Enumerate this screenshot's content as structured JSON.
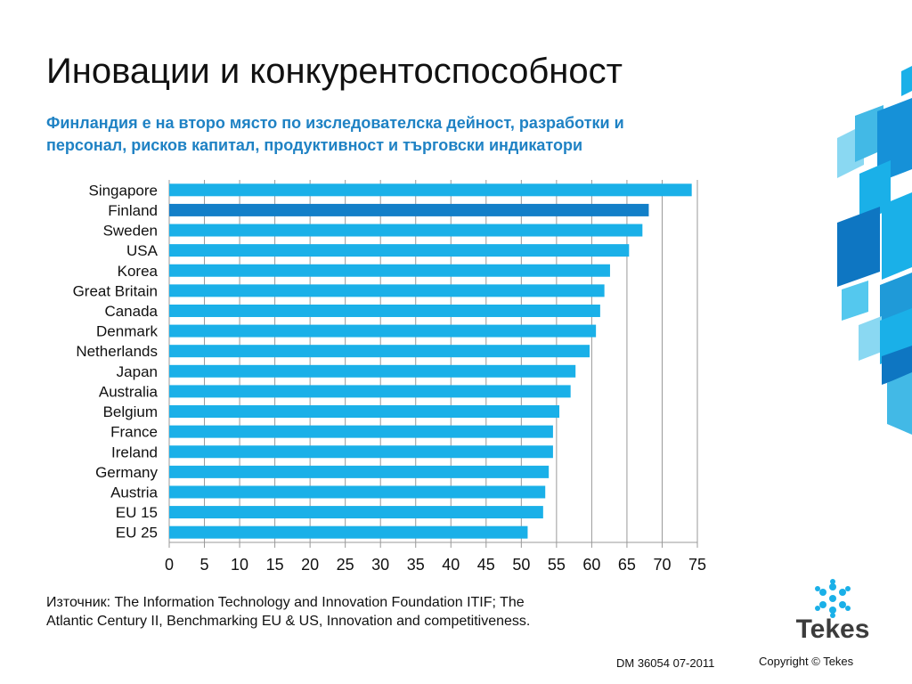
{
  "header": {
    "title": "Иновации и конкурентоспособност",
    "subtitle_line1": "Финландия е на второ място по изследователска дейност, разработки и",
    "subtitle_line2": "персонал, рисков капитал, продуктивност и търговски индикатори"
  },
  "chart_data": {
    "type": "bar",
    "orientation": "horizontal",
    "categories": [
      "Singapore",
      "Finland",
      "Sweden",
      "USA",
      "Korea",
      "Great Britain",
      "Canada",
      "Denmark",
      "Netherlands",
      "Japan",
      "Australia",
      "Belgium",
      "France",
      "Ireland",
      "Germany",
      "Austria",
      "EU 15",
      "EU 25"
    ],
    "values": [
      74.2,
      68.1,
      67.2,
      65.3,
      62.6,
      61.8,
      61.2,
      60.6,
      59.7,
      57.7,
      57.0,
      55.4,
      54.5,
      54.5,
      53.9,
      53.4,
      53.1,
      50.9
    ],
    "highlight": "Finland",
    "colors": {
      "bar": "#1ab0e8",
      "highlight": "#127fc8",
      "grid": "#999999"
    },
    "xlim": [
      0,
      75
    ],
    "xticks": [
      "0",
      "5",
      "10",
      "15",
      "20",
      "25",
      "30",
      "35",
      "40",
      "45",
      "50",
      "55",
      "60",
      "65",
      "70",
      "75"
    ],
    "grid": true,
    "legend": "none",
    "title": "",
    "xlabel": "",
    "ylabel": ""
  },
  "footer": {
    "source": "Източник: The Information Technology and Innovation Foundation ITIF; The Atlantic Century II, Benchmarking EU & US, Innovation and competitiveness.",
    "doc_id": "DM 36054  07-2011",
    "copyright": "Copyright © Tekes",
    "logo_text": "Tekes"
  }
}
